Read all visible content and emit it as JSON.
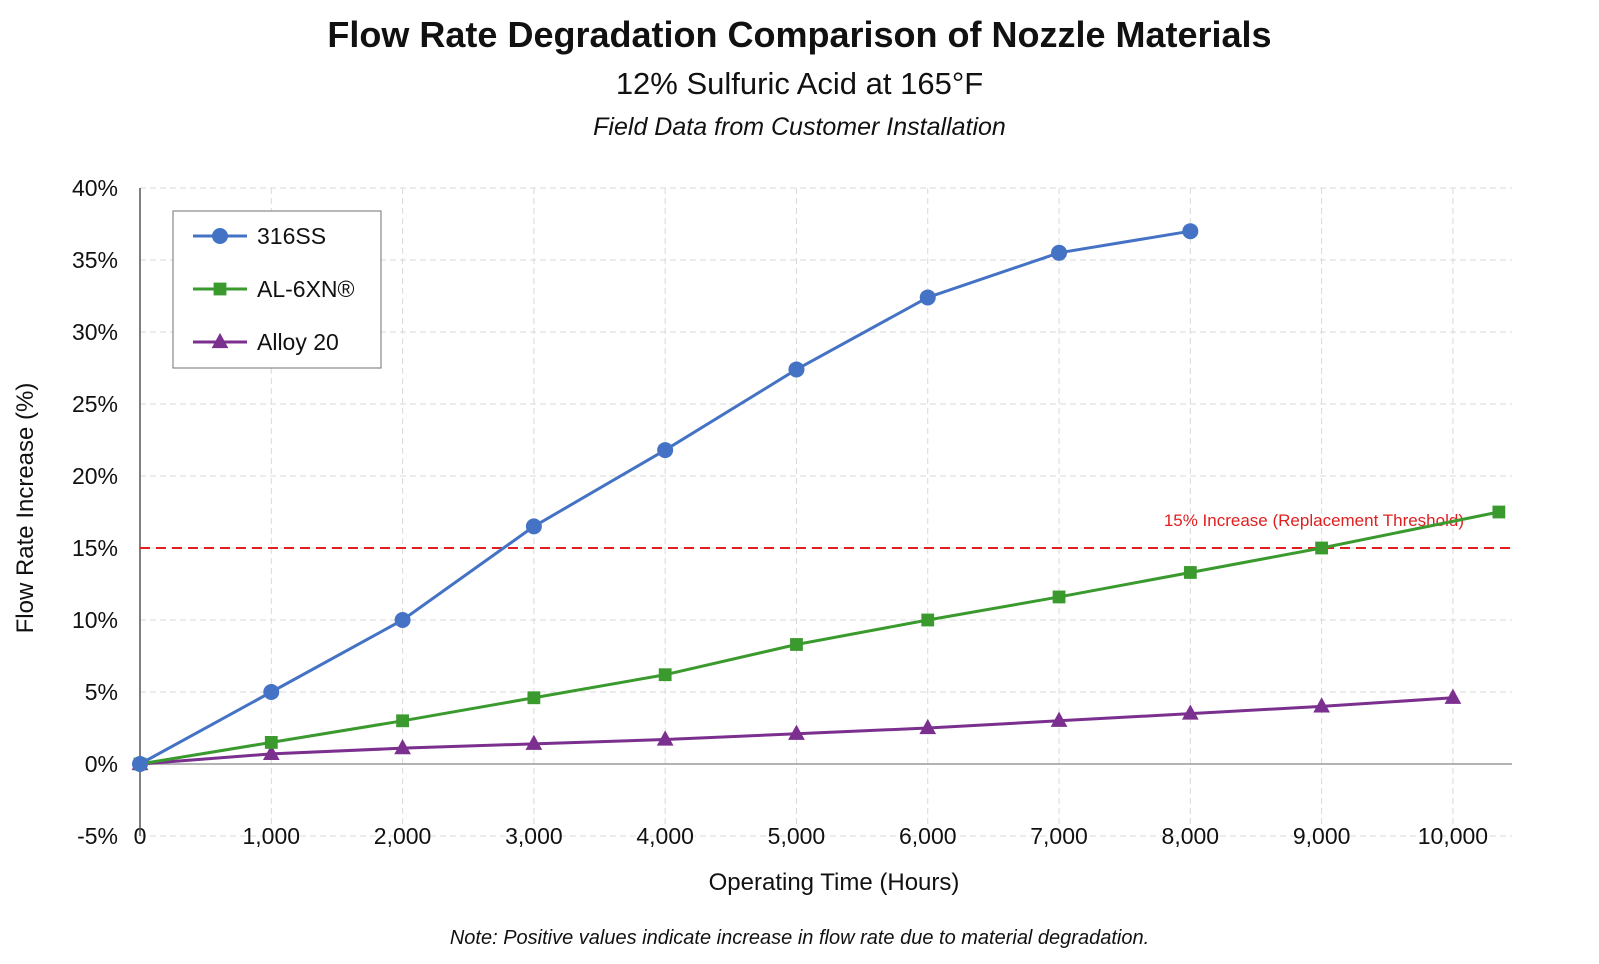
{
  "chart_data": {
    "type": "line",
    "title": "Flow Rate Degradation Comparison of Nozzle Materials",
    "subtitle": "12% Sulfuric Acid at 165°F",
    "subtitle2": "Field Data from Customer Installation",
    "xlabel": "Operating Time (Hours)",
    "ylabel": "Flow Rate Increase (%)",
    "xlim": [
      0,
      10450
    ],
    "ylim": [
      -5,
      40
    ],
    "x_ticks": [
      0,
      1000,
      2000,
      3000,
      4000,
      5000,
      6000,
      7000,
      8000,
      9000,
      10000
    ],
    "x_tick_labels": [
      "0",
      "1,000",
      "2,000",
      "3,000",
      "4,000",
      "5,000",
      "6,000",
      "7,000",
      "8,000",
      "9,000",
      "10,000"
    ],
    "y_ticks": [
      -5,
      0,
      5,
      10,
      15,
      20,
      25,
      30,
      35,
      40
    ],
    "y_tick_labels": [
      "-5%",
      "0%",
      "5%",
      "10%",
      "15%",
      "20%",
      "25%",
      "30%",
      "35%",
      "40%"
    ],
    "grid": true,
    "legend_position": "top-left",
    "series": [
      {
        "name": "316SS",
        "color": "#4472C4",
        "marker": "circle",
        "x": [
          0,
          1000,
          2000,
          3000,
          4000,
          5000,
          6000,
          7000,
          8000
        ],
        "y": [
          0,
          5,
          10,
          16.5,
          21.8,
          27.4,
          32.4,
          35.5,
          37
        ]
      },
      {
        "name": "AL-6XN®",
        "color": "#3A9A2E",
        "marker": "square",
        "x": [
          0,
          1000,
          2000,
          3000,
          4000,
          5000,
          6000,
          7000,
          8000,
          9000,
          10350
        ],
        "y": [
          0,
          1.5,
          3,
          4.6,
          6.2,
          8.3,
          10,
          11.6,
          13.3,
          15,
          17.5
        ]
      },
      {
        "name": "Alloy 20",
        "color": "#7B2F8E",
        "marker": "triangle",
        "x": [
          0,
          1000,
          2000,
          3000,
          4000,
          5000,
          6000,
          7000,
          8000,
          9000,
          10000
        ],
        "y": [
          0,
          0.7,
          1.1,
          1.4,
          1.7,
          2.1,
          2.5,
          3.0,
          3.5,
          4.0,
          4.6
        ]
      }
    ],
    "threshold": {
      "value": 15,
      "label": "15% Increase (Replacement Threshold)",
      "color": "#E02020"
    },
    "note": "Note: Positive values indicate increase in flow rate due to material degradation."
  }
}
